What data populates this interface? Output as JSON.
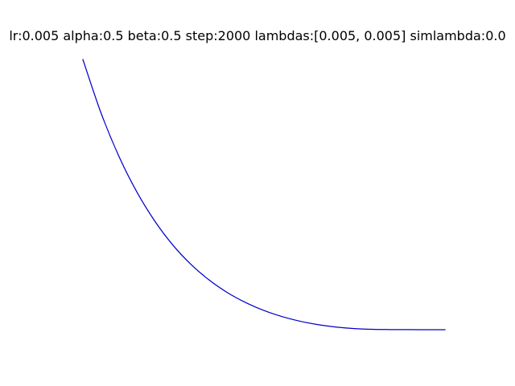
{
  "chart_data": {
    "type": "line",
    "title": "lr:0.005 alpha:0.5 beta:0.5 step:2000 lambdas:[0.005, 0.005] simlambda:0.0",
    "xlabel": "",
    "ylabel": "",
    "axes_visible": false,
    "grid": false,
    "x": [
      0.0,
      0.05,
      0.1,
      0.15,
      0.2,
      0.25,
      0.3,
      0.35,
      0.4,
      0.45,
      0.5,
      0.55,
      0.6,
      0.65,
      0.7,
      0.75,
      0.8,
      0.85,
      0.9,
      0.95,
      1.0
    ],
    "series": [
      {
        "color": "#0000cc",
        "values": [
          1.0,
          0.8024,
          0.6403,
          0.5076,
          0.3992,
          0.3109,
          0.2399,
          0.1826,
          0.1366,
          0.1002,
          0.0712,
          0.0486,
          0.0314,
          0.0185,
          0.0097,
          0.0041,
          0.0014,
          0.0005,
          0.0002,
          0.0001,
          0.0
        ]
      }
    ],
    "xlim": [
      0.0,
      1.0
    ],
    "ylim": [
      0.0,
      1.0
    ]
  }
}
